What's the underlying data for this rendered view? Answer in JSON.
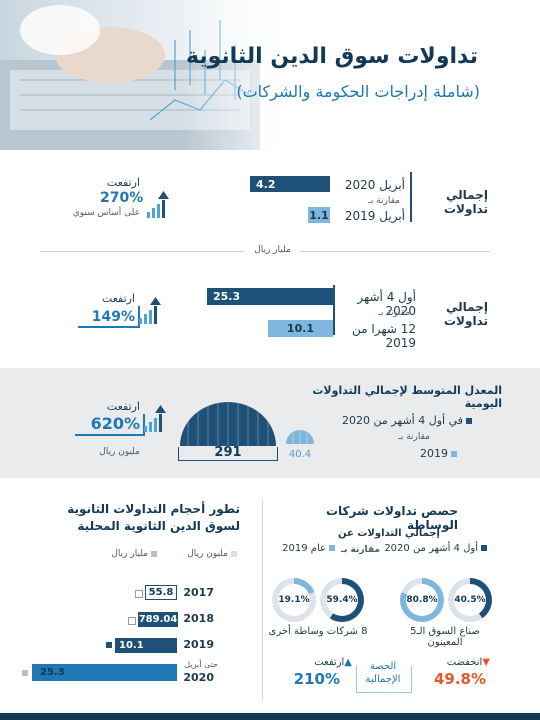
{
  "header": {
    "title": "تداولات سوق الدين الثانوية",
    "subtitle": "(شاملة إدراجات الحكومة والشركات)"
  },
  "section1": {
    "label": "إجمالي تداولات",
    "current_label": "أبريل 2020",
    "current_value": "4.2",
    "compare_text": "مقارنة بـ",
    "previous_label": "أبريل 2019",
    "previous_value": "1.1",
    "change_word": "ارتفعت",
    "change_value": "270%",
    "change_note": "على أساس سنوي"
  },
  "unit_divider": "مليار ريال",
  "section2": {
    "label": "إجمالي تداولات",
    "current_label": "أول 4 أشهر 2020",
    "current_value": "25.3",
    "compare_text": "مقارنة بـ",
    "previous_label": "12 شهرا من 2019",
    "previous_value": "10.1",
    "change_word": "ارتفعت",
    "change_value": "149%"
  },
  "section3": {
    "title": "المعدل المتوسط لإجمالي التداولات اليومية",
    "legend_current": "في أول 4 أشهر من 2020",
    "compare_text": "مقارنة بـ",
    "legend_previous": "2019",
    "big_value": "291",
    "small_value": "40.4",
    "change_word": "ارتفعت",
    "change_value": "620%",
    "unit": "مليون ريال"
  },
  "brokers": {
    "title": "حصص تداولات شركات الوساطة",
    "subtitle": "إجمالي التداولات عن",
    "legend_current": "أول 4 أشهر من 2020",
    "compare_text": "مقارنة بـ",
    "legend_previous": "عام 2019",
    "groups": [
      {
        "label": "صناع السوق الـ5 المعينون",
        "current": "40.5%",
        "previous": "80.8%",
        "current_pct": 40.5,
        "previous_pct": 80.8
      },
      {
        "label": "8 شركات وساطة أخرى",
        "current": "59.4%",
        "previous": "19.1%",
        "current_pct": 59.4,
        "previous_pct": 19.1
      }
    ],
    "share_label": "الحصة الإجمالية",
    "left_word": "ارتفعت",
    "left_value": "210%",
    "right_word": "انخفضت",
    "right_value": "49.8%"
  },
  "volumes": {
    "title_line1": "تطور أحجام التداولات الثانوية",
    "title_line2": "لسوق الدين الثانوية المحلية",
    "legend_million": "مليون ريال",
    "legend_billion": "مليار ريال",
    "rows": [
      {
        "year": "2017",
        "value": "55.8",
        "note": ""
      },
      {
        "year": "2018",
        "value": "789.04",
        "note": ""
      },
      {
        "year": "2019",
        "value": "10.1",
        "note": ""
      },
      {
        "year": "2020",
        "value": "25.3",
        "note": "حتى أبريل"
      }
    ]
  },
  "colors": {
    "dark": "#1e5078",
    "light": "#7fb6dd",
    "accent": "#1f78b4",
    "up": "#1f78b4",
    "down": "#e8562a"
  }
}
